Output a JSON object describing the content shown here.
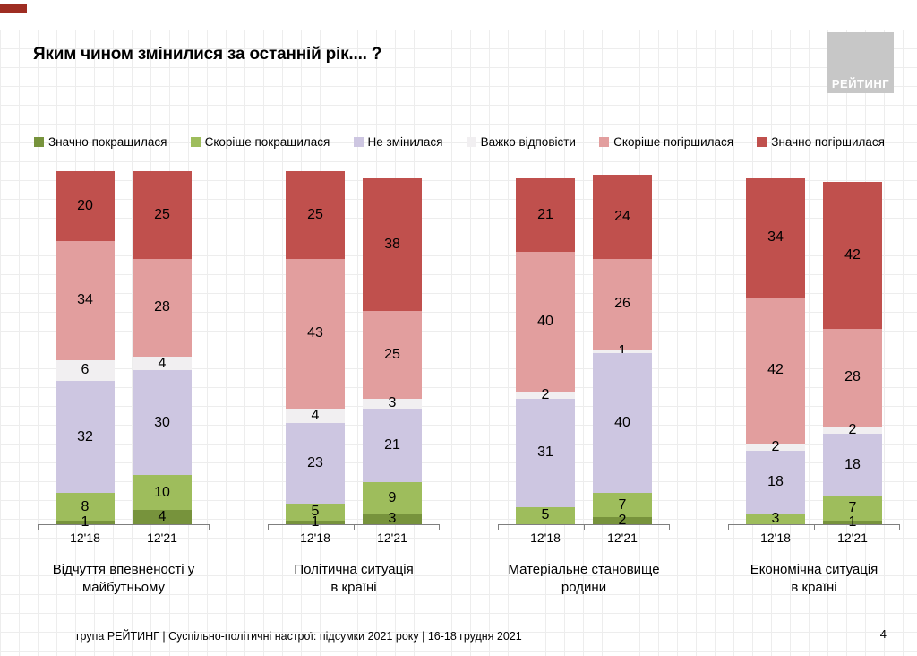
{
  "slide": {
    "title": "Яким чином змінилися за останній рік.... ?",
    "logo_text": "РЕЙТИНГ",
    "footer": "група РЕЙТИНГ | Суспільно-політичні настрої: підсумки 2021 року | 16-18 грудня 2021",
    "page_number": "4"
  },
  "chart_data": {
    "type": "bar",
    "stacked": true,
    "value_unit": "%",
    "ylim": [
      0,
      100
    ],
    "title": "Яким чином змінилися за останній рік.... ?",
    "legend_position": "top",
    "grid": true,
    "categories_per_group": [
      "12'18",
      "12'21"
    ],
    "groups": [
      "Відчуття впевненості у\nмайбутньому",
      "Політична ситуація\nв країні",
      "Матеріальне становище\nродини",
      "Економічна ситуація\nв країні"
    ],
    "series": [
      {
        "name": "Значно покращилася",
        "color": "#77933c",
        "values": [
          [
            1,
            4
          ],
          [
            1,
            3
          ],
          [
            0,
            2
          ],
          [
            0,
            1
          ]
        ]
      },
      {
        "name": "Скоріше покращилася",
        "color": "#9ebd5c",
        "values": [
          [
            8,
            10
          ],
          [
            5,
            9
          ],
          [
            5,
            7
          ],
          [
            3,
            7
          ]
        ]
      },
      {
        "name": "Не змінилася",
        "color": "#cdc6e1",
        "values": [
          [
            32,
            30
          ],
          [
            23,
            21
          ],
          [
            31,
            40
          ],
          [
            18,
            18
          ]
        ]
      },
      {
        "name": "Важко відповісти",
        "color": "#f1eff1",
        "values": [
          [
            6,
            4
          ],
          [
            4,
            3
          ],
          [
            2,
            1
          ],
          [
            2,
            2
          ]
        ]
      },
      {
        "name": "Скоріше погіршилася",
        "color": "#e29e9e",
        "values": [
          [
            34,
            28
          ],
          [
            43,
            25
          ],
          [
            40,
            26
          ],
          [
            42,
            28
          ]
        ]
      },
      {
        "name": "Значно погіршилася",
        "color": "#c0504d",
        "values": [
          [
            20,
            25
          ],
          [
            25,
            38
          ],
          [
            21,
            24
          ],
          [
            34,
            42
          ]
        ]
      }
    ]
  },
  "axis": {
    "line_color": "#7f7f7f"
  }
}
